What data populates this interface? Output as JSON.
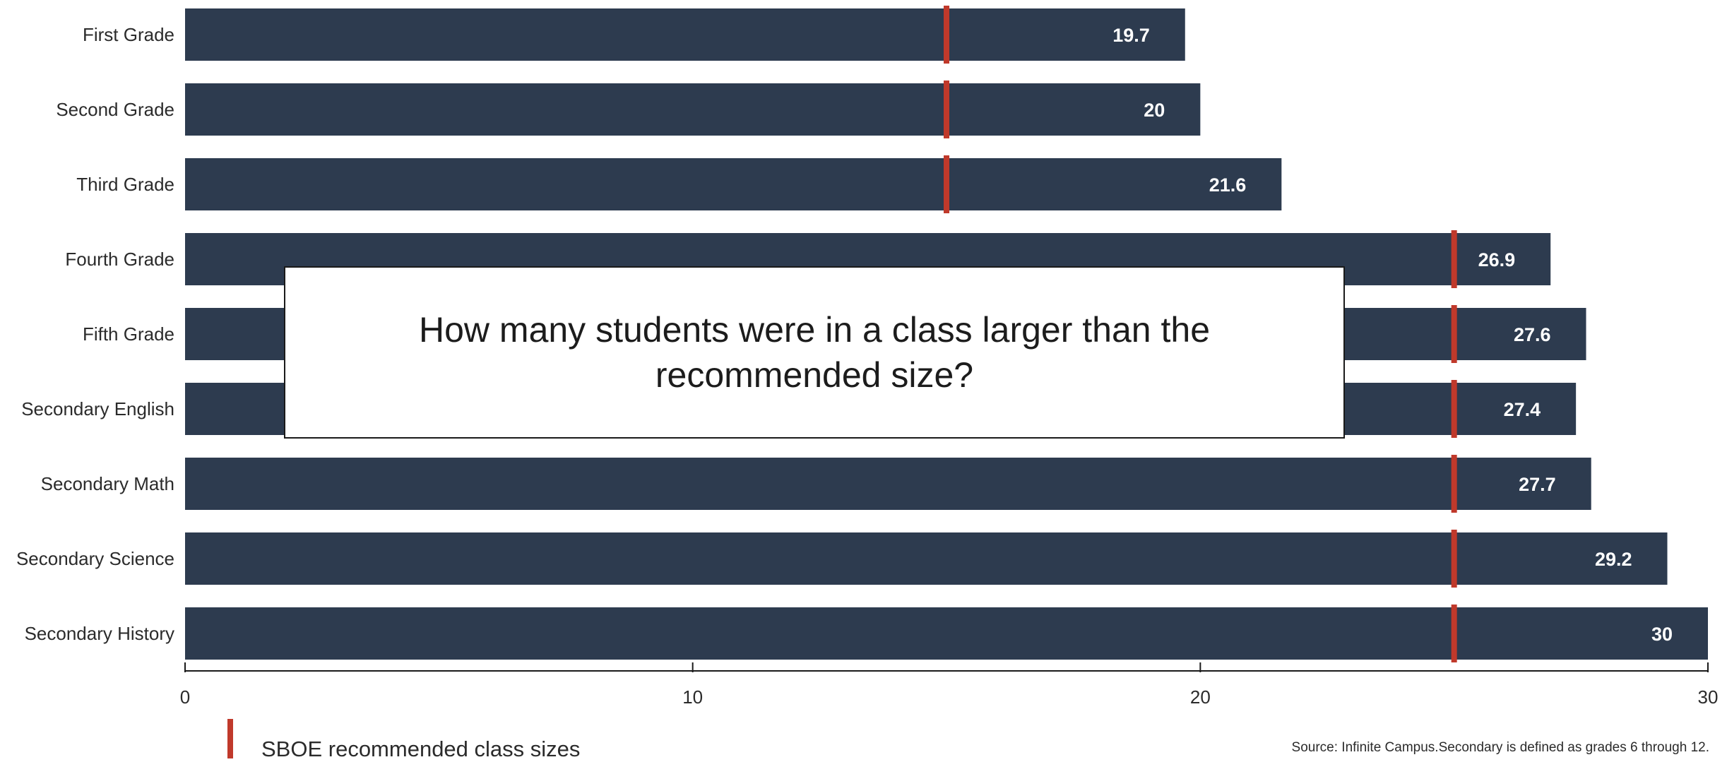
{
  "question": "How many students were in a class larger than the recommended size?",
  "legend": {
    "label": "SBOE recommended class sizes",
    "color": "#c0392b"
  },
  "source": "Source: Infinite Campus.Secondary is defined as grades 6 through 12.",
  "chart_data": {
    "type": "bar",
    "orientation": "horizontal",
    "categories": [
      "First Grade",
      "Second Grade",
      "Third Grade",
      "Fourth Grade",
      "Fifth Grade",
      "Secondary English",
      "Secondary Math",
      "Secondary Science",
      "Secondary History"
    ],
    "values": [
      19.7,
      20,
      21.6,
      26.9,
      27.6,
      27.4,
      27.7,
      29.2,
      30
    ],
    "value_labels": [
      "19.7",
      "20",
      "21.6",
      "26.9",
      "27.6",
      "27.4",
      "27.7",
      "29.2",
      "30"
    ],
    "recommended": [
      15,
      15,
      15,
      25,
      25,
      25,
      25,
      25,
      25
    ],
    "xlim": [
      0,
      30
    ],
    "xticks": [
      0,
      10,
      20,
      30
    ],
    "bar_color": "#2d3b4f",
    "marker_color": "#c0392b",
    "grid": false,
    "legend_position": "bottom-left"
  }
}
